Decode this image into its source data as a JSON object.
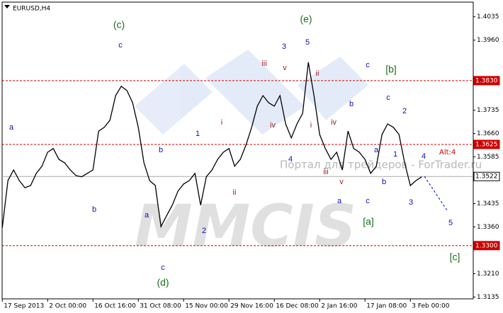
{
  "chart_data": {
    "type": "line",
    "title": "EURUSD,H4",
    "series": [
      {
        "name": "EURUSD",
        "color": "#000000",
        "values": [
          1.3357,
          1.3509,
          1.3543,
          1.3509,
          1.3486,
          1.3493,
          1.3532,
          1.3555,
          1.36,
          1.3612,
          1.3577,
          1.3566,
          1.3543,
          1.3525,
          1.3521,
          1.3532,
          1.3543,
          1.3668,
          1.368,
          1.3703,
          1.3782,
          1.3812,
          1.3798,
          1.3759,
          1.368,
          1.3566,
          1.3509,
          1.3493,
          1.3361,
          1.3396,
          1.343,
          1.3475,
          1.3498,
          1.3509,
          1.3532,
          1.343,
          1.3521,
          1.3543,
          1.3577,
          1.36,
          1.3612,
          1.3555,
          1.3577,
          1.3623,
          1.368,
          1.3748,
          1.3782,
          1.3759,
          1.3748,
          1.3782,
          1.3691,
          1.3646,
          1.3691,
          1.3725,
          1.3889,
          1.3782,
          1.3657,
          1.3612,
          1.3577,
          1.36,
          1.3543,
          1.3668,
          1.3612,
          1.36,
          1.3577,
          1.3532,
          1.3555,
          1.3657,
          1.3691,
          1.368,
          1.3657,
          1.3566,
          1.3493,
          1.3509,
          1.3521
        ]
      },
      {
        "name": "forecast",
        "color": "#0000cc",
        "x": [
          74.5,
          78.6
        ],
        "values": [
          1.3522,
          1.341
        ]
      }
    ],
    "xlim": [
      -0.4,
      83.1
    ],
    "ylim": [
      1.3129,
      1.4089
    ],
    "xticks": [
      {
        "value": 0,
        "label": "17 Sep 2013"
      },
      {
        "value": 8,
        "label": "2 Oct 00:00"
      },
      {
        "value": 16,
        "label": "16 Oct 16:00"
      },
      {
        "value": 24,
        "label": "31 Oct 08:00"
      },
      {
        "value": 32,
        "label": "15 Nov 00:00"
      },
      {
        "value": 40,
        "label": "29 Nov 16:00"
      },
      {
        "value": 48,
        "label": "16 Dec 08:00"
      },
      {
        "value": 56,
        "label": "2 Jan 16:00"
      },
      {
        "value": 64,
        "label": "17 Jan 08:00"
      },
      {
        "value": 72,
        "label": "3 Feb 00:00"
      }
    ],
    "yticks": [
      {
        "value": 1.4035,
        "label": "1.4035"
      },
      {
        "value": 1.396,
        "label": "1.3960"
      },
      {
        "value": 1.3735,
        "label": "1.3735"
      },
      {
        "value": 1.366,
        "label": "1.3660"
      },
      {
        "value": 1.3585,
        "label": "1.3585"
      },
      {
        "value": 1.3435,
        "label": "1.3435"
      },
      {
        "value": 1.336,
        "label": "1.3360"
      },
      {
        "value": 1.321,
        "label": "1.3210"
      },
      {
        "value": 1.3135,
        "label": "1.3135"
      }
    ],
    "levels": [
      {
        "value": 1.383,
        "label": "1.3830",
        "color": "#cc0000"
      },
      {
        "value": 1.3625,
        "label": "1.3625",
        "color": "#cc0000"
      },
      {
        "value": 1.33,
        "label": "1.3300",
        "color": "#cc0000"
      },
      {
        "value": 1.3522,
        "label": "1.3522",
        "color": "#aaaaaa"
      }
    ],
    "alt_label": "Alt:4",
    "annotations": [
      {
        "text": "(c)",
        "color": "#1a6e1a"
      },
      {
        "text": "c",
        "color": "#1010b0"
      },
      {
        "text": "(e)",
        "color": "#1a6e1a"
      },
      {
        "text": "5",
        "color": "#1010b0"
      },
      {
        "text": "3",
        "color": "#1010b0"
      },
      {
        "text": "iii",
        "color": "#a02020"
      },
      {
        "text": "v",
        "color": "#a02020"
      },
      {
        "text": "ii",
        "color": "#a02020"
      },
      {
        "text": "[b]",
        "color": "#1a6e1a"
      },
      {
        "text": "c",
        "color": "#1010b0"
      },
      {
        "text": "a",
        "color": "#1010b0"
      },
      {
        "text": "b",
        "color": "#1010b0"
      },
      {
        "text": "b",
        "color": "#1010b0"
      },
      {
        "text": "a",
        "color": "#1010b0"
      },
      {
        "text": "c",
        "color": "#1010b0"
      },
      {
        "text": "(d)",
        "color": "#1a6e1a"
      },
      {
        "text": "1",
        "color": "#1010b0"
      },
      {
        "text": "2",
        "color": "#1010b0"
      },
      {
        "text": "i",
        "color": "#a02020"
      },
      {
        "text": "ii",
        "color": "#a02020"
      },
      {
        "text": "iv",
        "color": "#a02020"
      },
      {
        "text": "4",
        "color": "#1010b0"
      },
      {
        "text": "i",
        "color": "#a02020"
      },
      {
        "text": "iv",
        "color": "#a02020"
      },
      {
        "text": "b",
        "color": "#1010b0"
      },
      {
        "text": "iii",
        "color": "#a02020"
      },
      {
        "text": "v",
        "color": "#a02020"
      },
      {
        "text": "a",
        "color": "#1010b0"
      },
      {
        "text": "c",
        "color": "#1010b0"
      },
      {
        "text": "[a]",
        "color": "#1a6e1a"
      },
      {
        "text": "c",
        "color": "#1010b0"
      },
      {
        "text": "2",
        "color": "#1010b0"
      },
      {
        "text": "a",
        "color": "#1010b0"
      },
      {
        "text": "1",
        "color": "#1010b0"
      },
      {
        "text": "b",
        "color": "#1010b0"
      },
      {
        "text": "3",
        "color": "#1010b0"
      },
      {
        "text": "4",
        "color": "#1010b0"
      },
      {
        "text": "5",
        "color": "#1010b0"
      },
      {
        "text": "[c]",
        "color": "#1a6e1a"
      }
    ],
    "watermark": "MMCIS",
    "watermark_site": "Портал для трейдеров - ForTrader.ru"
  }
}
